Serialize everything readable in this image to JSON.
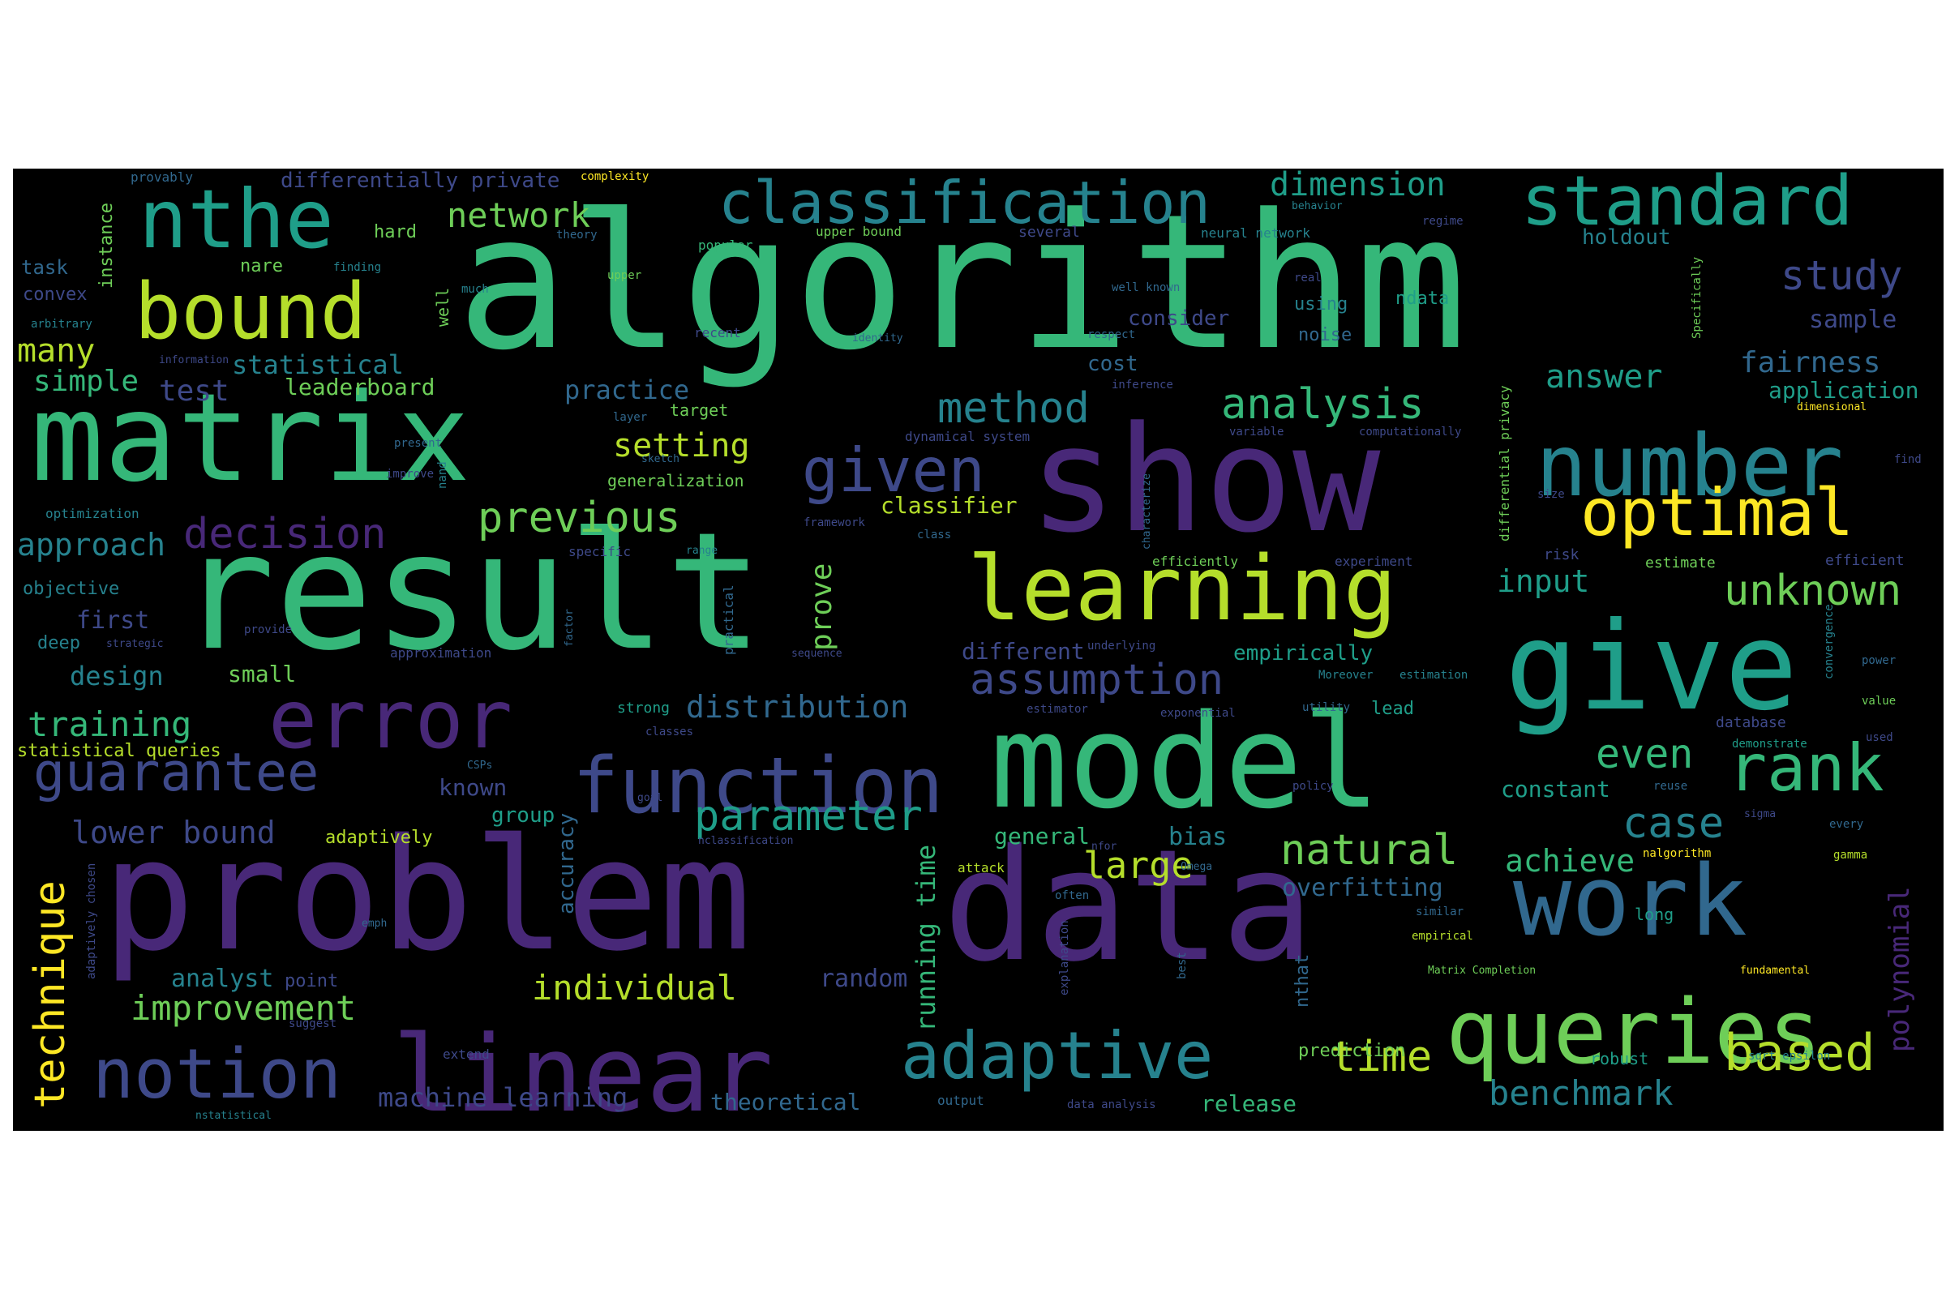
{
  "palette": {
    "background": "#000000",
    "page": "#ffffff",
    "colors": [
      "#440154",
      "#482878",
      "#3e4989",
      "#31688e",
      "#26828e",
      "#1f9e89",
      "#35b779",
      "#6ece58",
      "#b5de2b",
      "#fde725"
    ]
  },
  "words": {
    "algorithm": "algorithm",
    "result": "result",
    "show": "show",
    "problem": "problem",
    "data": "data",
    "model": "model",
    "matrix": "matrix",
    "give": "give",
    "learning": "learning",
    "work": "work",
    "linear": "linear",
    "queries": "queries",
    "number": "number",
    "error": "error",
    "function": "function",
    "nthe": "nthe",
    "bound": "bound",
    "standard": "standard",
    "classification": "classification",
    "adaptive": "adaptive",
    "notion": "notion",
    "guarantee": "guarantee",
    "given": "given",
    "optimal": "optimal",
    "rank": "rank",
    "previous": "previous",
    "decision": "decision",
    "method": "method",
    "analysis": "analysis",
    "assumption": "assumption",
    "technique": "technique",
    "parameter": "parameter",
    "natural": "natural",
    "case": "case",
    "unknown": "unknown",
    "based": "based",
    "time": "time",
    "even": "even",
    "study": "study",
    "distribution": "distribution",
    "training": "training",
    "improvement": "improvement",
    "network": "network",
    "benchmark": "benchmark",
    "individual": "individual",
    "large": "large",
    "approach": "approach",
    "lower_bound": "lower bound",
    "dimension": "dimension",
    "fairness": "fairness",
    "polynomial": "polynomial",
    "answer": "answer",
    "setting": "setting",
    "prove": "prove",
    "input": "input",
    "achieve": "achieve",
    "machine_learning": "machine learning",
    "many": "many",
    "simple": "simple",
    "statistical": "statistical",
    "test": "test",
    "practice": "practice",
    "overfitting": "overfitting",
    "running_time": "running time",
    "accuracy": "accuracy",
    "constant": "constant",
    "leaderboard": "leaderboard",
    "theoretical": "theoretical",
    "release": "release",
    "classifier": "classifier",
    "design": "design",
    "different": "different",
    "random": "random",
    "analyst": "analyst",
    "sample": "sample",
    "application": "application",
    "known": "known",
    "first": "first",
    "small": "small",
    "group": "group",
    "bias": "bias",
    "general": "general",
    "empirically": "empirically",
    "holdout": "holdout",
    "differentially_private": "differentially private",
    "consider": "consider",
    "cost": "cost",
    "approach2": "",
    "statistical_queries": "statistical queries",
    "adaptively": "adaptively",
    "prediction": "prediction",
    "instance": "instance",
    "task": "task",
    "convex": "convex",
    "nare": "nare",
    "hard": "hard",
    "objective": "objective",
    "deep": "deep",
    "point": "point",
    "noise": "noise",
    "using": "using",
    "ndata": "ndata",
    "lead": "lead",
    "target": "target",
    "generalization": "generalization",
    "robust": "robust",
    "long": "long",
    "database": "database",
    "strong": "strong",
    "optimization": "optimization",
    "upper_bound": "upper bound",
    "provably": "provably",
    "complexity": "complexity",
    "several": "several",
    "neural_network": "neural network",
    "regime": "regime",
    "theory": "theory",
    "finding": "finding",
    "popular": "popular",
    "upper": "upper",
    "much": "much",
    "well": "well",
    "well_known": "well known",
    "real": "real",
    "arbitrary": "arbitrary",
    "information": "information",
    "recent": "recent",
    "identity": "identity",
    "respect": "respect",
    "differential_privacy": "differential privacy",
    "specifically": "Specifically",
    "dimensional": "dimensional",
    "inference": "inference",
    "layer": "layer",
    "present": "present",
    "improve": "improve",
    "sketch": "sketch",
    "nand": "nand",
    "dynamical_system": "dynamical system",
    "variable": "variable",
    "computationally": "computationally",
    "characterize": "characterize",
    "size": "size",
    "find": "find",
    "framework": "framework",
    "specific": "specific",
    "range": "range",
    "class": "class",
    "efficiently": "efficiently",
    "experiment": "experiment",
    "risk": "risk",
    "estimate": "estimate",
    "efficient": "efficient",
    "practical": "practical",
    "provide": "provide",
    "strategic": "strategic",
    "approximation": "approximation",
    "factor": "factor",
    "sequence": "sequence",
    "underlying": "underlying",
    "moreover": "Moreover",
    "estimation": "estimation",
    "convergence": "convergence",
    "power": "power",
    "classes": "classes",
    "estimator": "estimator",
    "exponential": "exponential",
    "utility": "utility",
    "value": "value",
    "demonstrate": "demonstrate",
    "used": "used",
    "csps": "CSPs",
    "policy": "policy",
    "reuse": "reuse",
    "goal": "goal",
    "sigma": "sigma",
    "every": "every",
    "nclassification": "nclassification",
    "nfor": "nfor",
    "attack": "attack",
    "nalgorithm": "nalgorithm",
    "gamma": "gamma",
    "omega": "Omega",
    "often": "often",
    "emph": "emph",
    "adaptively_chosen": "adaptively chosen",
    "explanation": "explanation",
    "similar": "similar",
    "empirical": "empirical",
    "matrix_completion": "Matrix Completion",
    "fundamental": "fundamental",
    "nthat": "nthat",
    "best": "best",
    "suggest": "suggest",
    "extend": "extend",
    "output": "output",
    "data_analysis": "data analysis",
    "sqrt_epsilon": "sqrt epsilon",
    "nstatistical": "nstatistical",
    "behavior": "behavior"
  }
}
